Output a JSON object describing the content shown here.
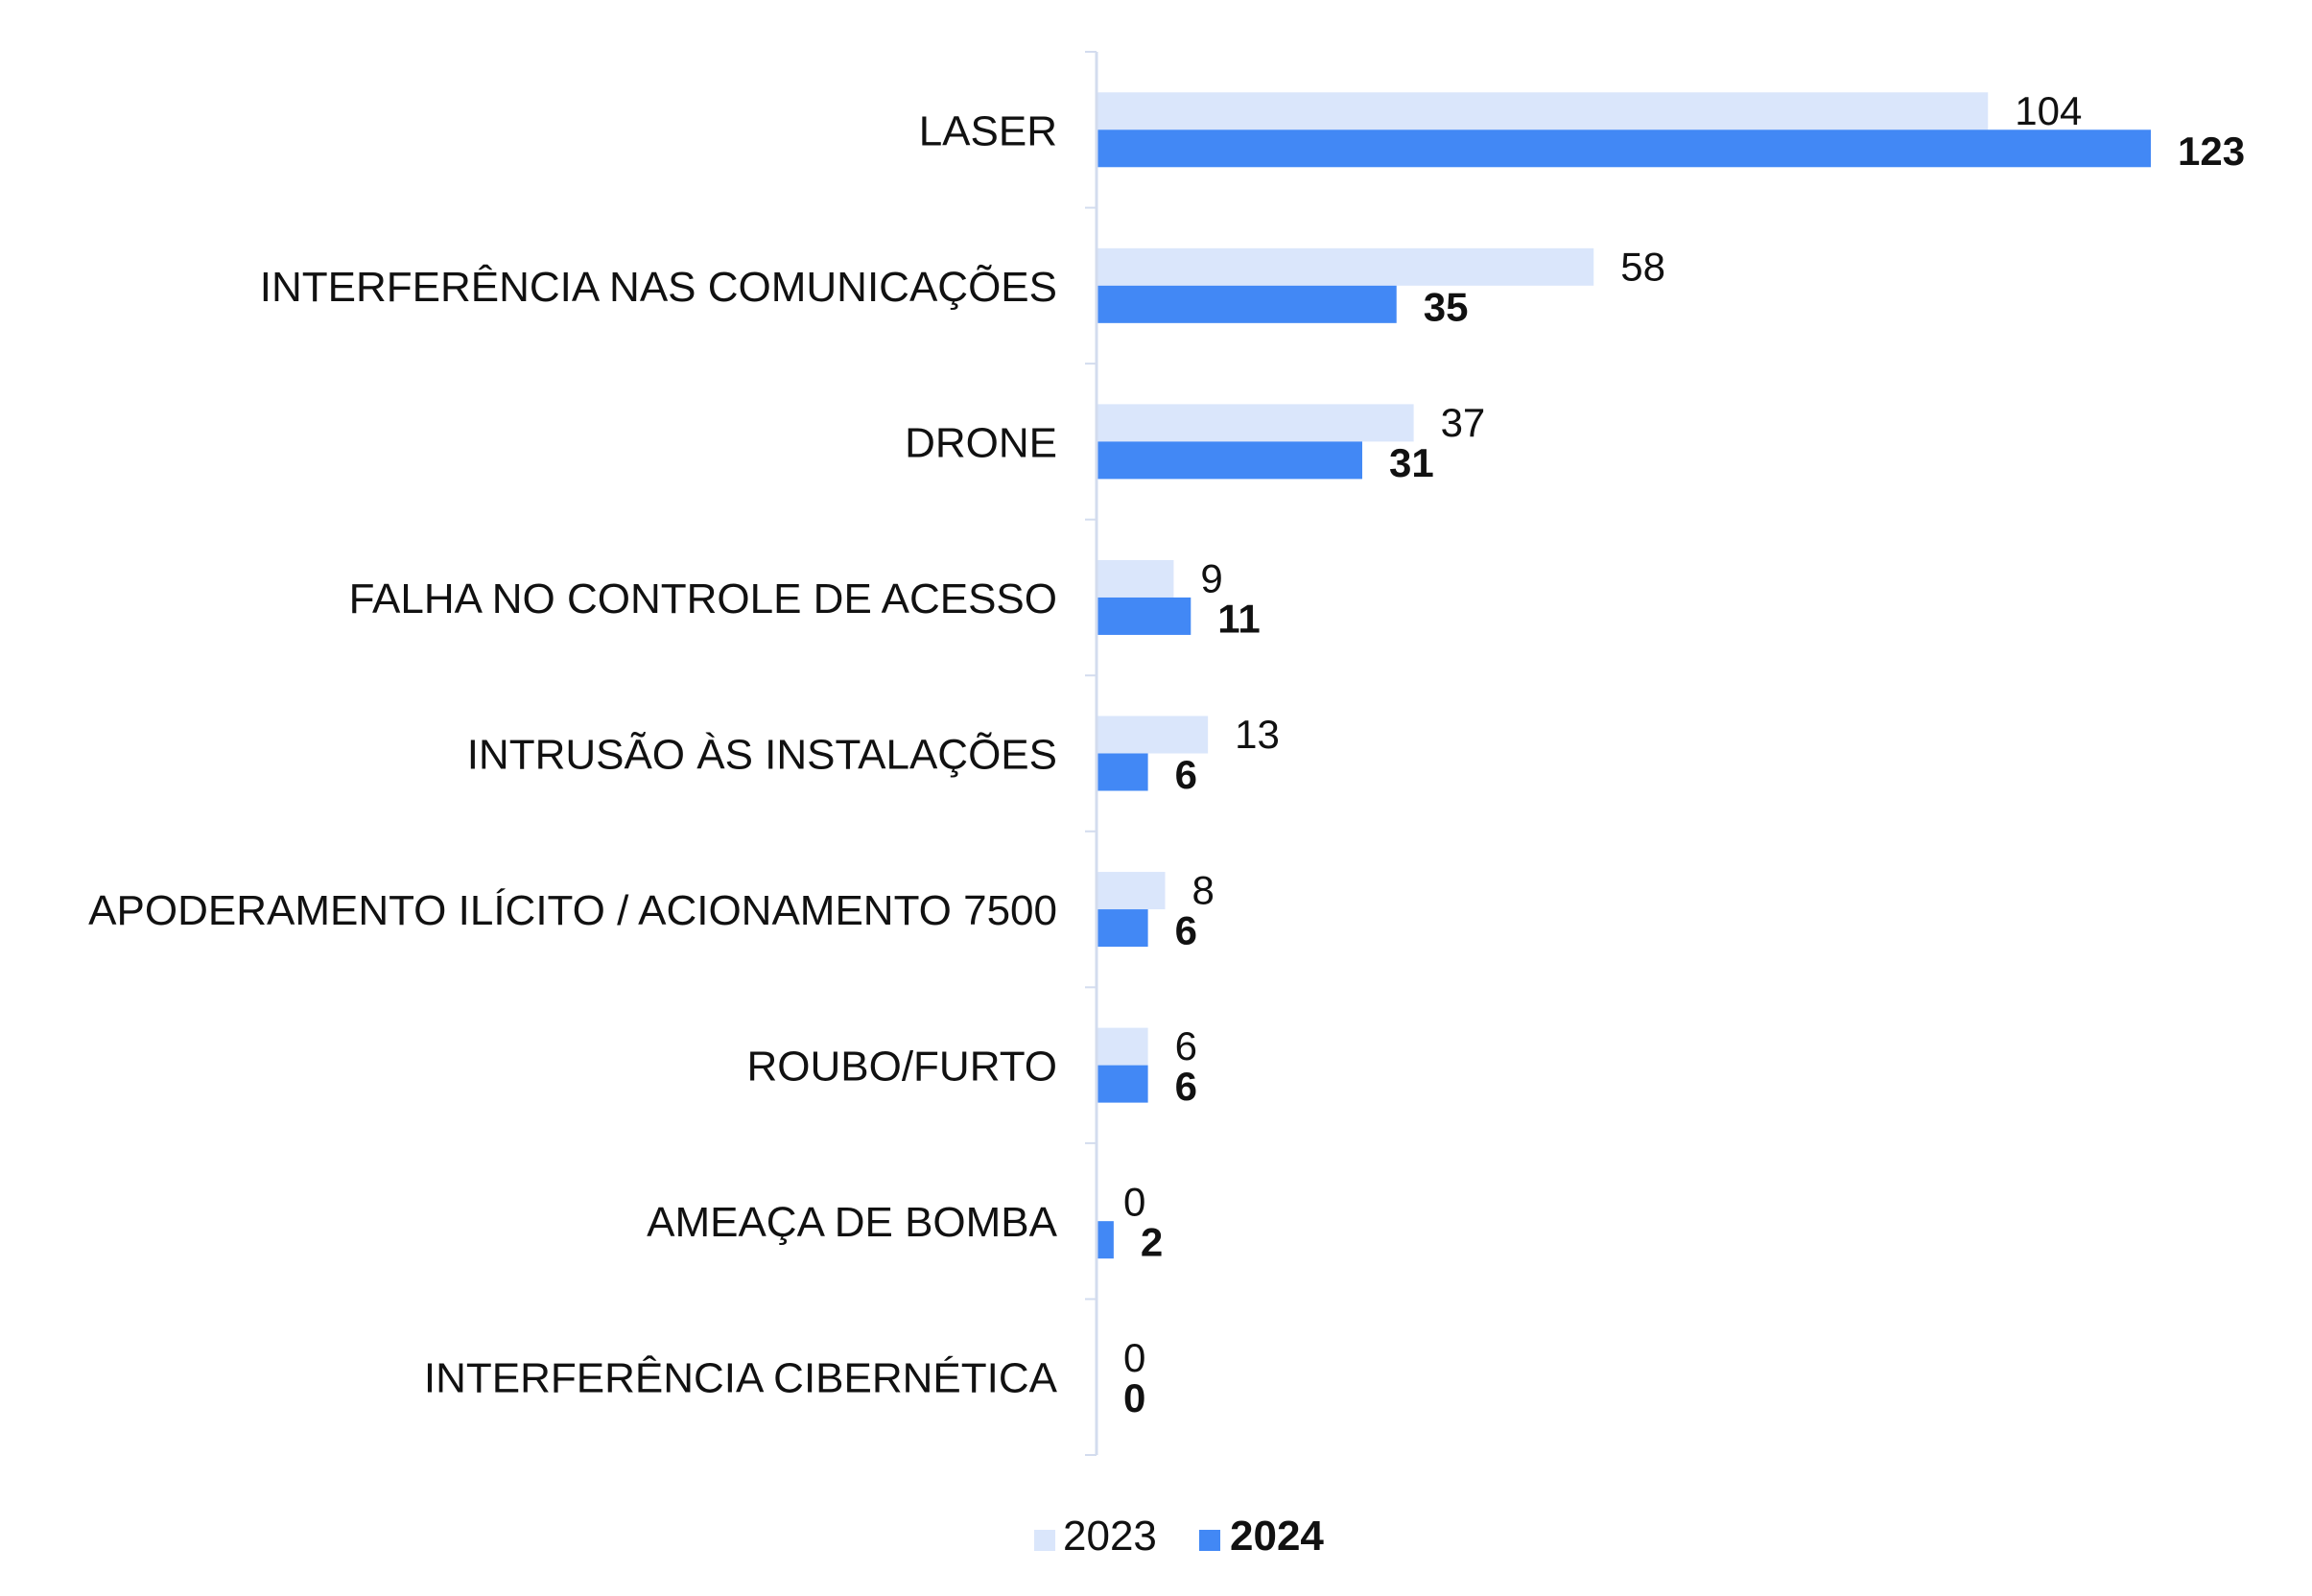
{
  "chart_data": {
    "type": "bar",
    "orientation": "horizontal",
    "categories": [
      "LASER",
      "INTERFERÊNCIA NAS COMUNICAÇÕES",
      "DRONE",
      "FALHA NO CONTROLE DE ACESSO",
      "INTRUSÃO ÀS INSTALAÇÕES",
      "APODERAMENTO ILÍCITO / ACIONAMENTO 7500",
      "ROUBO/FURTO",
      "AMEAÇA DE BOMBA",
      "INTERFERÊNCIA CIBERNÉTICA"
    ],
    "series": [
      {
        "name": "2023",
        "color": "#dae6fb",
        "values": [
          104,
          58,
          37,
          9,
          13,
          8,
          6,
          0,
          0
        ]
      },
      {
        "name": "2024",
        "color": "#4288f5",
        "values": [
          123,
          35,
          31,
          11,
          6,
          6,
          6,
          2,
          0
        ]
      }
    ],
    "title": "",
    "xlabel": "",
    "ylabel": "",
    "xlim": [
      0,
      123
    ],
    "grid": false,
    "legend_position": "bottom-center",
    "axis_color": "#d3dcee"
  }
}
